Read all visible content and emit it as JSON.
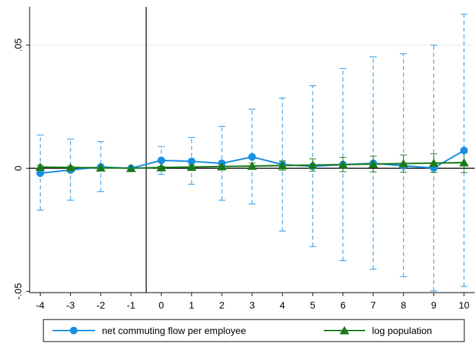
{
  "chart_data": {
    "type": "line",
    "x": [
      -4,
      -3,
      -2,
      -1,
      0,
      1,
      2,
      3,
      4,
      5,
      6,
      7,
      8,
      9,
      10
    ],
    "xticks": [
      "-4",
      "-3",
      "-2",
      "-1",
      "0",
      "1",
      "2",
      "3",
      "4",
      "5",
      "6",
      "7",
      "8",
      "9",
      "10"
    ],
    "yticks": [
      {
        "value": -0.05,
        "label": "-.05"
      },
      {
        "value": 0,
        "label": "0"
      },
      {
        "value": 0.05,
        "label": ".05"
      }
    ],
    "ylim": [
      -0.0505,
      0.0655
    ],
    "xlim": [
      -4.35,
      10.35
    ],
    "vline_x": -0.5,
    "hline_y": 0,
    "grid": true,
    "legend_position": "bottom",
    "series": [
      {
        "name": "net commuting flow per employee",
        "color": "#1a8fe3",
        "marker": "circle",
        "values": [
          -0.002,
          -0.0007,
          0.0005,
          0.0,
          0.0032,
          0.0028,
          0.002,
          0.0046,
          0.0015,
          0.0008,
          0.0015,
          0.002,
          0.001,
          0.0001,
          0.0072
        ],
        "ci_lower": [
          -0.017,
          -0.013,
          -0.0095,
          0.0,
          -0.0025,
          -0.0065,
          -0.013,
          -0.0145,
          -0.0255,
          -0.0318,
          -0.0375,
          -0.041,
          -0.044,
          -0.0498,
          -0.048
        ],
        "ci_upper": [
          0.0135,
          0.0118,
          0.0108,
          0.0,
          0.0088,
          0.0125,
          0.017,
          0.024,
          0.0285,
          0.0335,
          0.0405,
          0.0452,
          0.0465,
          0.05,
          0.0625
        ]
      },
      {
        "name": "log population",
        "color": "#1a7a1a",
        "marker": "triangle",
        "values": [
          0.0005,
          0.0003,
          0.0002,
          0.0,
          0.0003,
          0.0005,
          0.0007,
          0.0009,
          0.0011,
          0.0013,
          0.0015,
          0.0017,
          0.0019,
          0.0021,
          0.0023
        ],
        "ci_lower": [
          -0.0002,
          -0.0003,
          -0.0003,
          0.0,
          -0.0002,
          -0.0002,
          -0.0002,
          -0.0003,
          -0.0008,
          -0.0012,
          -0.0014,
          -0.0015,
          -0.0016,
          -0.0017,
          -0.0018
        ],
        "ci_upper": [
          0.0012,
          0.0009,
          0.0007,
          0.0,
          0.0008,
          0.0012,
          0.0016,
          0.0021,
          0.003,
          0.0038,
          0.0044,
          0.0049,
          0.0054,
          0.0059,
          0.0064
        ]
      }
    ]
  }
}
